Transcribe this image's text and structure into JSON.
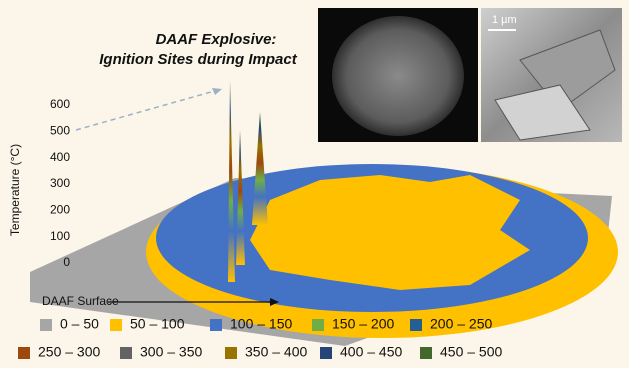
{
  "chart_data": {
    "type": "surface3d",
    "title_lines": [
      "DAAF Explosive:",
      "Ignition Sites during Impact"
    ],
    "ylabel": "Temperature (°C)",
    "xlabel": "DAAF Surface",
    "ylim": [
      0,
      600
    ],
    "yticks": [
      0,
      100,
      200,
      300,
      400,
      500,
      600
    ],
    "scale_bar": "1 µm",
    "legend": [
      {
        "label": "0 – 50",
        "color": "#a6a6a6"
      },
      {
        "label": "50 – 100",
        "color": "#ffc000"
      },
      {
        "label": "100 – 150",
        "color": "#4472c4"
      },
      {
        "label": "150 – 200",
        "color": "#70ad47"
      },
      {
        "label": "200 – 250",
        "color": "#255e91"
      },
      {
        "label": "250 – 300",
        "color": "#9e480e"
      },
      {
        "label": "300 – 350",
        "color": "#636363"
      },
      {
        "label": "350 – 400",
        "color": "#997300"
      },
      {
        "label": "400 – 450",
        "color": "#264478"
      },
      {
        "label": "450 – 500",
        "color": "#43682b"
      }
    ]
  }
}
